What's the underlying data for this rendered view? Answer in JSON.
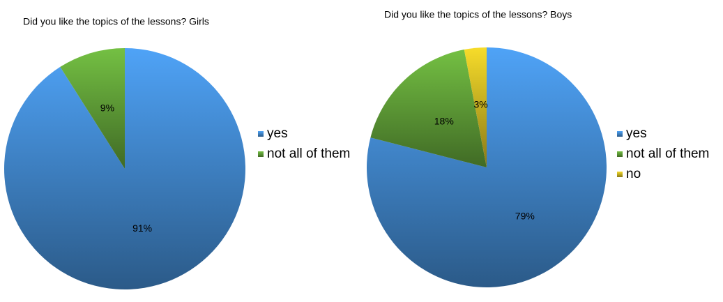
{
  "chart_data": [
    {
      "type": "pie",
      "title": "Did you like the topics of the lessons? Girls",
      "categories": [
        "yes",
        "not all of them"
      ],
      "values": [
        91,
        9
      ],
      "value_labels": [
        "91%",
        "9%"
      ],
      "colors": [
        "#4fa3f7",
        "#74c043"
      ],
      "legend": "right"
    },
    {
      "type": "pie",
      "title": "Did you like the topics of the lessons? Boys",
      "categories": [
        "yes",
        "not all of them",
        "no"
      ],
      "values": [
        79,
        18,
        3
      ],
      "value_labels": [
        "79%",
        "18%",
        "3%"
      ],
      "colors": [
        "#4fa3f7",
        "#74c043",
        "#f7dc2a"
      ],
      "legend": "right"
    }
  ]
}
